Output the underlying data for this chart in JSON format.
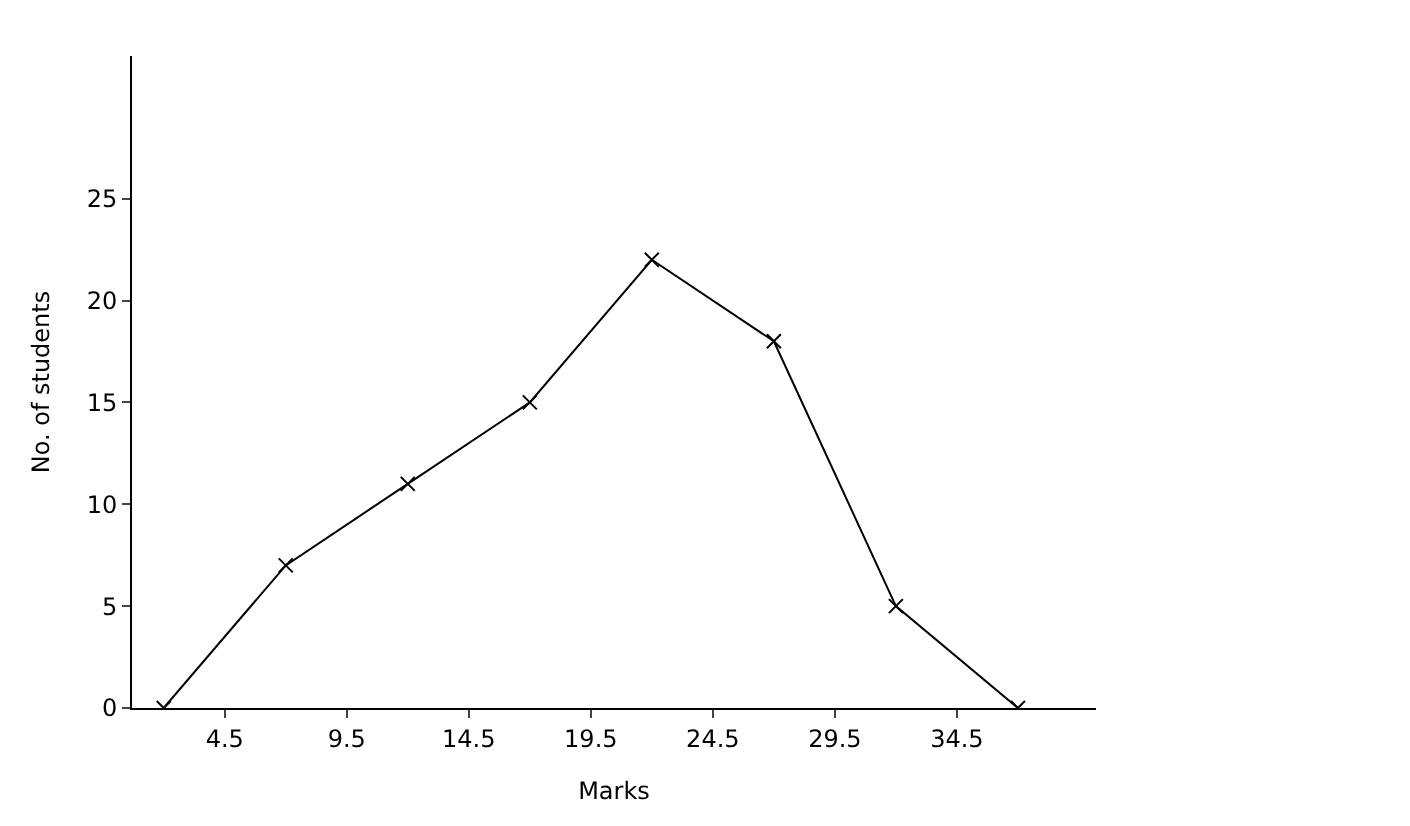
{
  "chart_data": {
    "type": "line",
    "xlabel": "Marks",
    "ylabel": "No. of students",
    "x": [
      2,
      7,
      12,
      17,
      22,
      27,
      32,
      37
    ],
    "series": [
      {
        "color": "#000000",
        "values": [
          0,
          7,
          11,
          15,
          22,
          18,
          5,
          0
        ]
      }
    ],
    "xlim": [
      0.7,
      40.2
    ],
    "xticks": [
      4.5,
      9.5,
      14.5,
      19.5,
      24.5,
      29.5,
      34.5
    ],
    "ylim": [
      0,
      32
    ],
    "yticks": [
      0,
      5,
      10,
      15,
      20,
      25
    ],
    "grid": false,
    "marker": "cross",
    "line_style": "solid"
  }
}
